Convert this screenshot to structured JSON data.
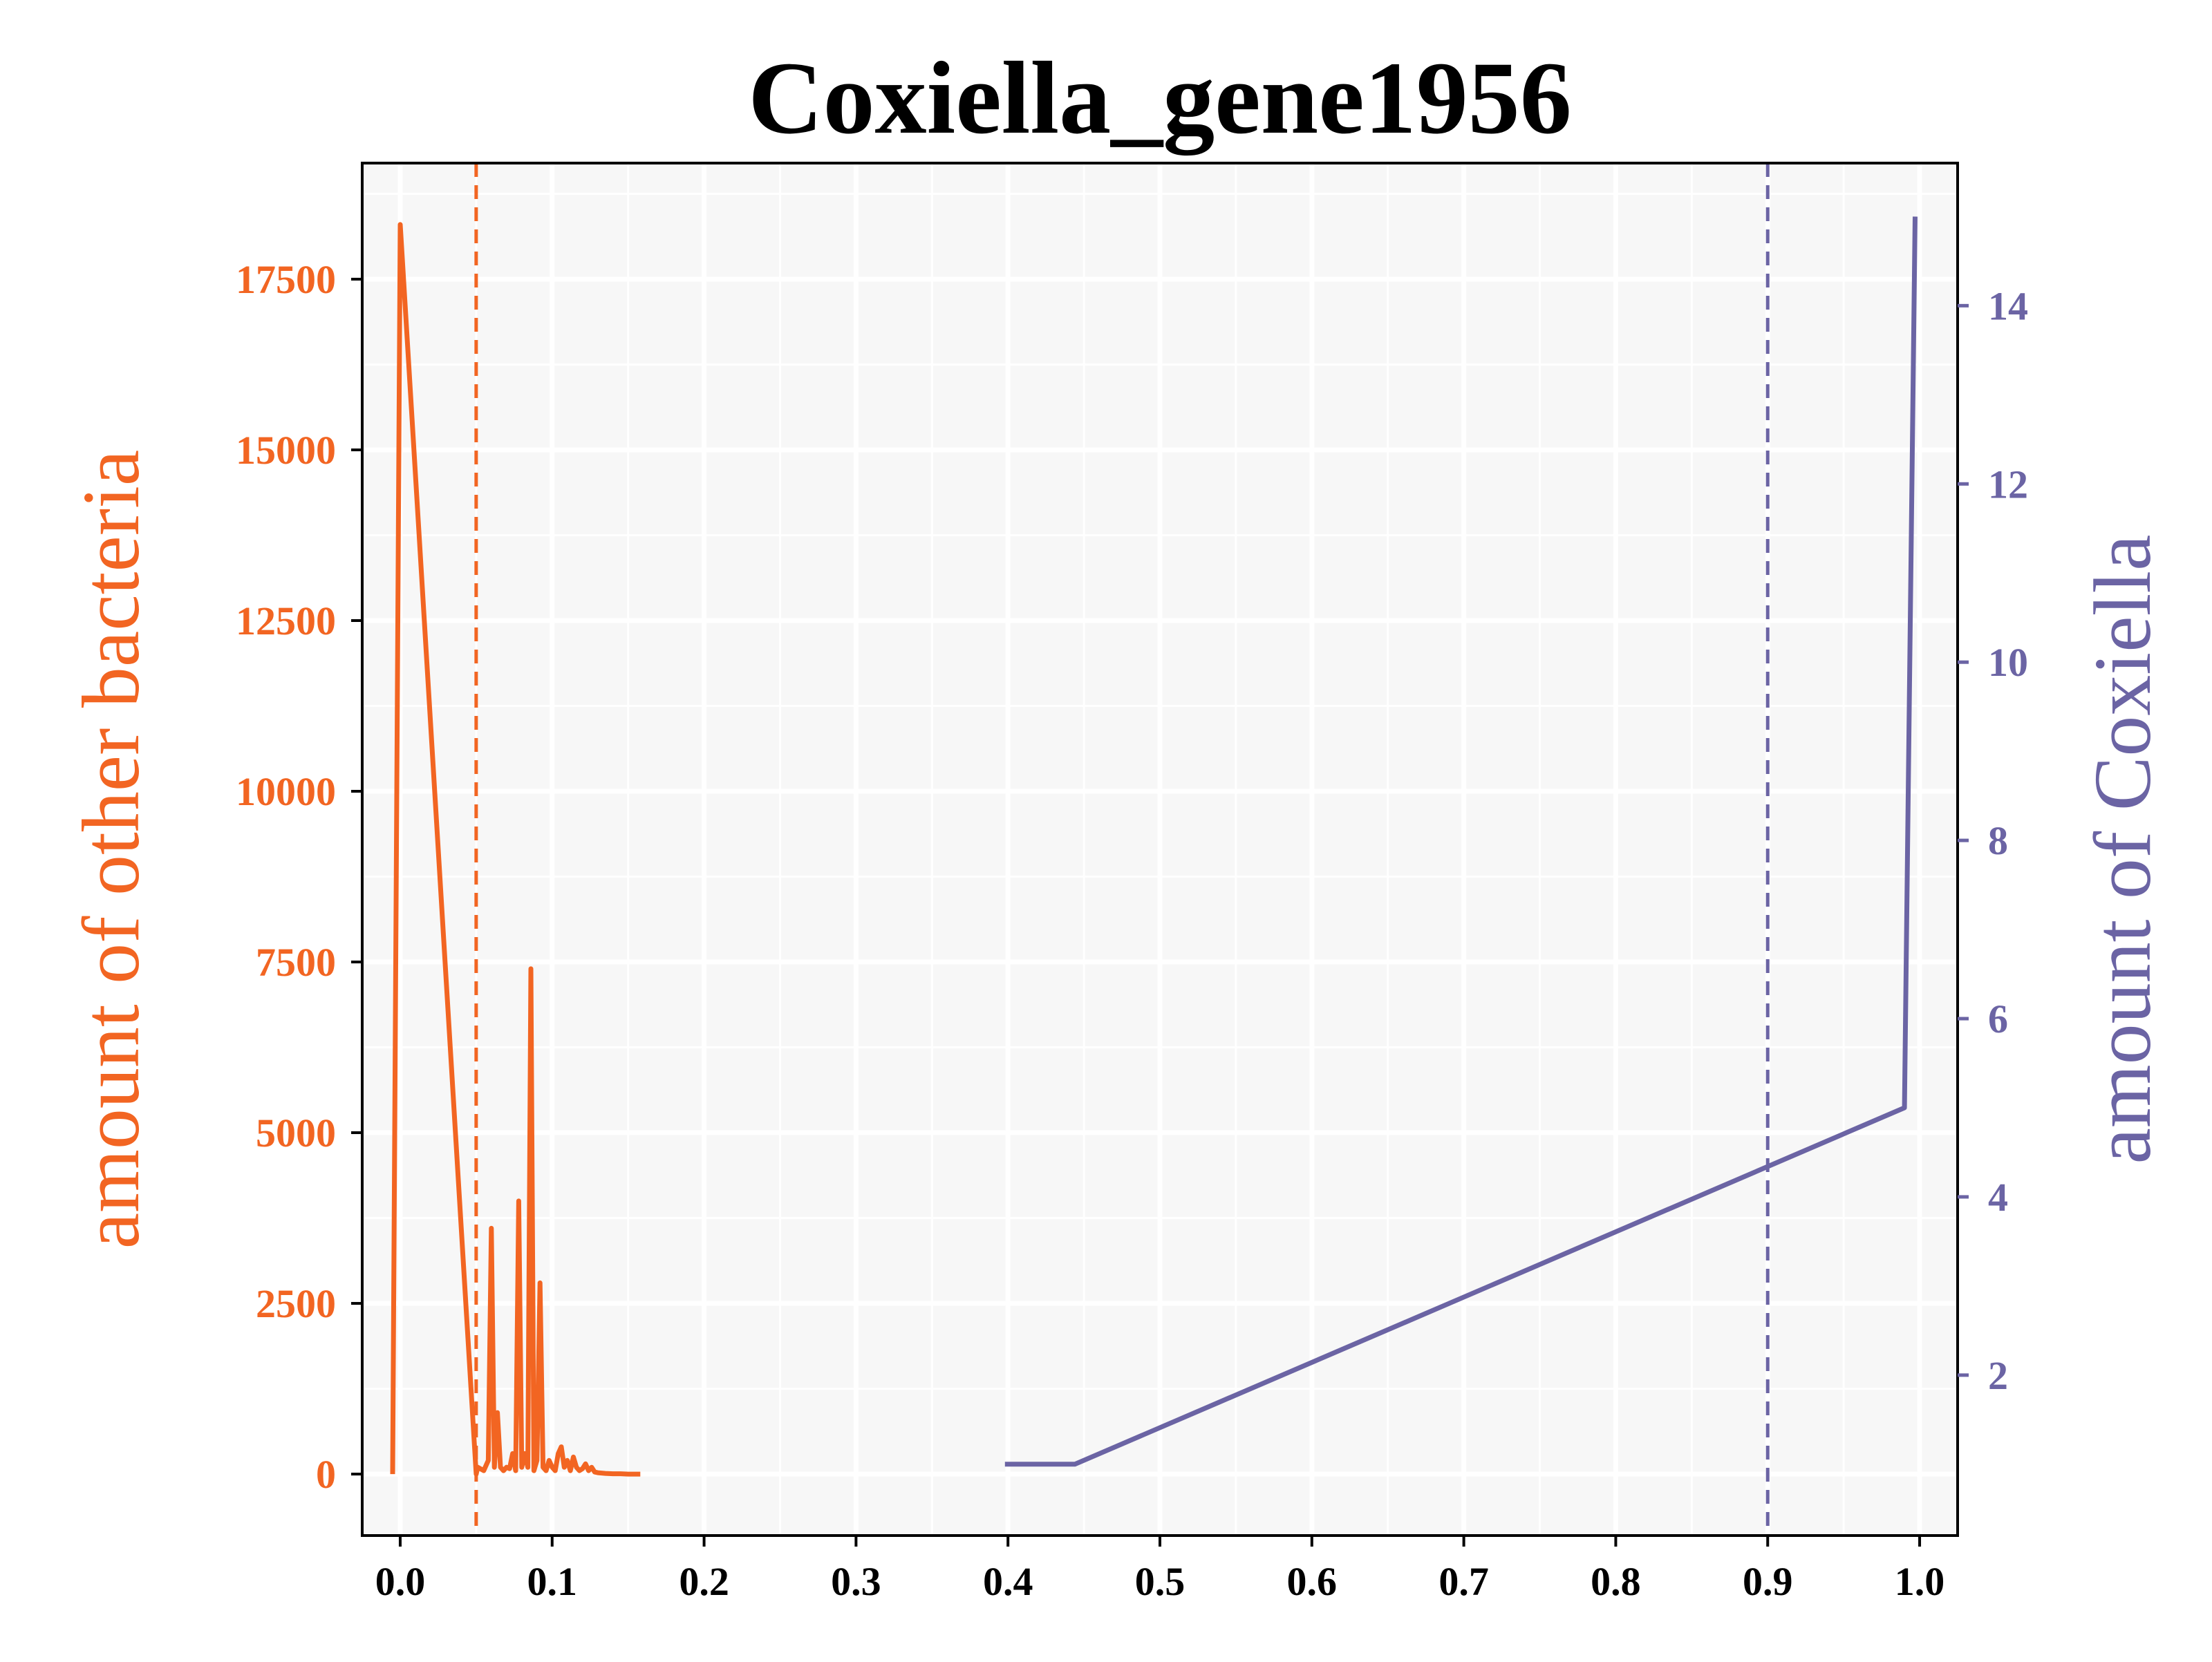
{
  "chart_data": {
    "type": "line",
    "title": "Coxiella_gene1956",
    "xlabel": "",
    "xlim": [
      -0.025,
      1.025
    ],
    "x_ticks": [
      "0.0",
      "0.1",
      "0.2",
      "0.3",
      "0.4",
      "0.5",
      "0.6",
      "0.7",
      "0.8",
      "0.9",
      "1.0"
    ],
    "x_tick_values": [
      0.0,
      0.1,
      0.2,
      0.3,
      0.4,
      0.5,
      0.6,
      0.7,
      0.8,
      0.9,
      1.0
    ],
    "grid": true,
    "left_axis": {
      "label": "amount of other bacteria",
      "color": "#f26522",
      "ylim": [
        -900,
        19200
      ],
      "ticks": [
        "0",
        "2500",
        "5000",
        "7500",
        "10000",
        "12500",
        "15000",
        "17500"
      ],
      "tick_values": [
        0,
        2500,
        5000,
        7500,
        10000,
        12500,
        15000,
        17500
      ]
    },
    "right_axis": {
      "label": "amount of Coxiella",
      "color": "#6b64a4",
      "ylim": [
        0.2,
        15.6
      ],
      "ticks": [
        "2",
        "4",
        "6",
        "8",
        "10",
        "12",
        "14"
      ],
      "tick_values": [
        2,
        4,
        6,
        8,
        10,
        12,
        14
      ]
    },
    "series": [
      {
        "axis": "left",
        "color": "#f26522",
        "x": [
          -0.005,
          0.0,
          0.05,
          0.051,
          0.055,
          0.058,
          0.06,
          0.062,
          0.064,
          0.066,
          0.068,
          0.07,
          0.072,
          0.074,
          0.076,
          0.078,
          0.08,
          0.082,
          0.084,
          0.086,
          0.088,
          0.09,
          0.092,
          0.094,
          0.096,
          0.098,
          0.1,
          0.102,
          0.104,
          0.106,
          0.108,
          0.11,
          0.112,
          0.114,
          0.116,
          0.118,
          0.12,
          0.122,
          0.124,
          0.126,
          0.128,
          0.13,
          0.135,
          0.14,
          0.145,
          0.15,
          0.155,
          0.158
        ],
        "values": [
          0,
          18300,
          0,
          100,
          50,
          200,
          3600,
          100,
          900,
          100,
          50,
          100,
          80,
          300,
          50,
          4000,
          100,
          300,
          100,
          7400,
          50,
          200,
          2800,
          100,
          50,
          200,
          100,
          50,
          300,
          400,
          100,
          200,
          50,
          250,
          100,
          50,
          80,
          150,
          50,
          100,
          30,
          20,
          10,
          5,
          5,
          0,
          0,
          0
        ]
      },
      {
        "axis": "right",
        "color": "#6b64a4",
        "x": [
          0.398,
          0.444,
          0.99,
          0.997
        ],
        "values": [
          1,
          1,
          5,
          15
        ]
      }
    ],
    "vlines": [
      {
        "x": 0.05,
        "color": "#f26522",
        "style": "dashed"
      },
      {
        "x": 0.9,
        "color": "#6b64a4",
        "style": "dashed"
      }
    ]
  }
}
